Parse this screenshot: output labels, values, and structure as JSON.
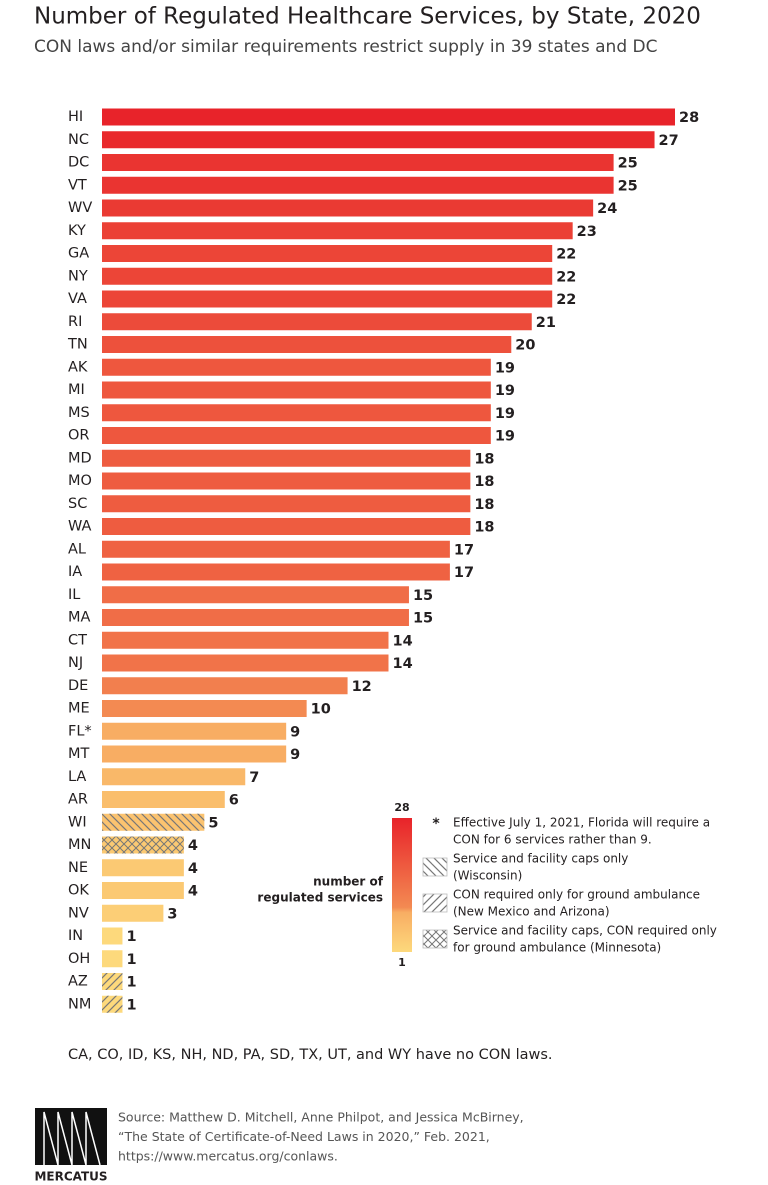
{
  "chart_data": {
    "type": "bar",
    "orientation": "horizontal",
    "title": "Number of Regulated Healthcare Services, by State, 2020",
    "subtitle": "CON laws and/or similar requirements restrict supply in 39 states and DC",
    "categories": [
      "HI",
      "NC",
      "DC",
      "VT",
      "WV",
      "KY",
      "GA",
      "NY",
      "VA",
      "RI",
      "TN",
      "AK",
      "MI",
      "MS",
      "OR",
      "MD",
      "MO",
      "SC",
      "WA",
      "AL",
      "IA",
      "IL",
      "MA",
      "CT",
      "NJ",
      "DE",
      "ME",
      "FL*",
      "MT",
      "LA",
      "AR",
      "WI",
      "MN",
      "NE",
      "OK",
      "NV",
      "IN",
      "OH",
      "AZ",
      "NM"
    ],
    "values": [
      28,
      27,
      25,
      25,
      24,
      23,
      22,
      22,
      22,
      21,
      20,
      19,
      19,
      19,
      19,
      18,
      18,
      18,
      18,
      17,
      17,
      15,
      15,
      14,
      14,
      12,
      10,
      9,
      9,
      7,
      6,
      5,
      4,
      4,
      4,
      3,
      1,
      1,
      1,
      1
    ],
    "hatches": [
      null,
      null,
      null,
      null,
      null,
      null,
      null,
      null,
      null,
      null,
      null,
      null,
      null,
      null,
      null,
      null,
      null,
      null,
      null,
      null,
      null,
      null,
      null,
      null,
      null,
      null,
      null,
      null,
      null,
      null,
      null,
      "back",
      "cross",
      null,
      null,
      null,
      null,
      null,
      "forward",
      "forward"
    ],
    "colorscale": [
      {
        "value": 1,
        "color": "#fdd97c"
      },
      {
        "value": 9,
        "color": "#f8ad63"
      },
      {
        "value": 10,
        "color": "#f38a52"
      },
      {
        "value": 28,
        "color": "#e8232a"
      }
    ],
    "colorbar": {
      "label": [
        "number of",
        "regulated services"
      ],
      "ticks": [
        28,
        1
      ]
    },
    "notes": [
      {
        "symbol": "*",
        "lines": [
          "Effective July 1, 2021, Florida will require a",
          "CON for 6 services rather than 9."
        ]
      },
      {
        "hatch": "back",
        "lines": [
          "Service and facility caps only",
          "(Wisconsin)"
        ]
      },
      {
        "hatch": "forward",
        "lines": [
          "CON required only for ground ambulance",
          "(New Mexico and Arizona)"
        ]
      },
      {
        "hatch": "cross",
        "lines": [
          "Service and facility caps, CON required only",
          "for ground ambulance (Minnesota)"
        ]
      }
    ],
    "footnote": "CA, CO, ID, KS, NH, ND, PA, SD, TX, UT, and WY have no CON laws.",
    "source": [
      "Source: Matthew D. Mitchell, Anne Philpot, and Jessica McBirney,",
      "“The State of Certificate-of-Need Laws in 2020,” Feb. 2021,",
      "https://www.mercatus.org/conlaws."
    ],
    "logo": "MERCATUS"
  }
}
